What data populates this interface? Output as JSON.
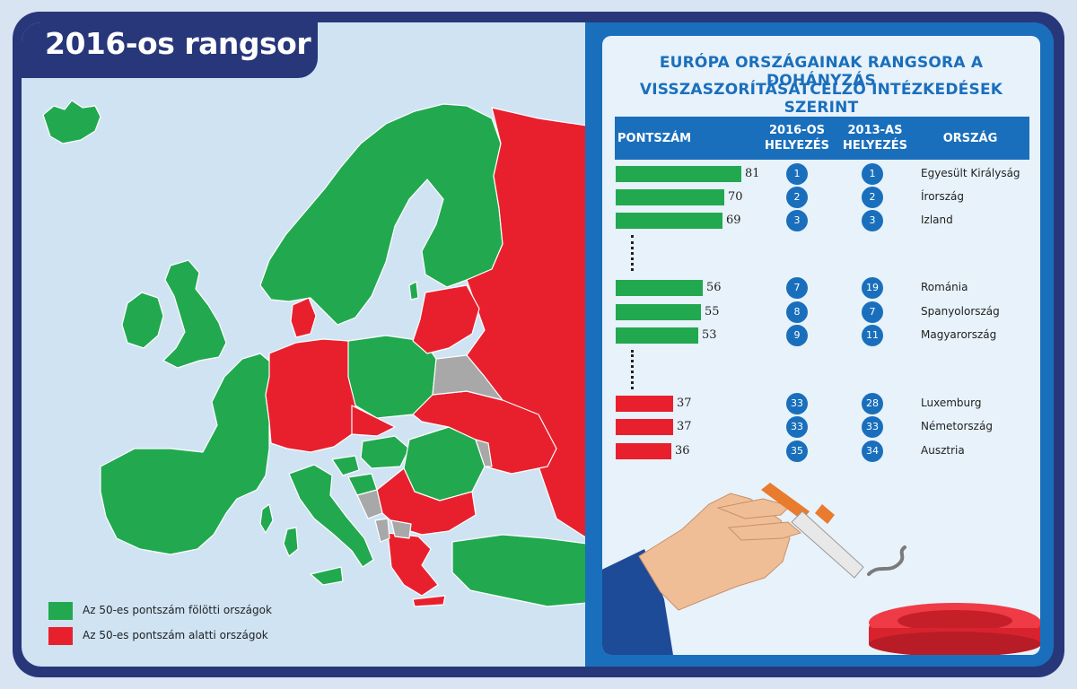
{
  "map": {
    "title": "2016-os rangsor",
    "legend": [
      {
        "label": "Az 50-es pontszám fölötti országok",
        "color": "#22a94f"
      },
      {
        "label": "Az 50-es pontszám alatti országok",
        "color": "#e8202e"
      }
    ],
    "colors": {
      "above": "#22a94f",
      "below": "#e8202e",
      "nodata": "#a8a8a8",
      "sea": "#cfe3f3"
    }
  },
  "panel": {
    "title_line1": "EURÓPA ORSZÁGAINAK RANGSORA A DOHÁNYZÁS",
    "title_line2": "VISSZASZORÍTÁSÁTCÉLZÓ INTÉZKEDÉSEK SZERINT"
  },
  "chart_data": {
    "type": "table",
    "title": "EURÓPA ORSZÁGAINAK RANGSORA A DOHÁNYZÁS VISSZASZORÍTÁSÁTCÉLZÓ INTÉZKEDÉSEK SZERINT",
    "columns": [
      "PONTSZÁM",
      "2016-OS HELYEZÉS",
      "2013-AS HELYEZÉS",
      "ORSZÁG"
    ],
    "rows": [
      {
        "score": 81,
        "rank2016": 1,
        "rank2013": 1,
        "country": "Egyesült Királyság",
        "color": "#22a94f"
      },
      {
        "score": 70,
        "rank2016": 2,
        "rank2013": 2,
        "country": "Írország",
        "color": "#22a94f"
      },
      {
        "score": 69,
        "rank2016": 3,
        "rank2013": 3,
        "country": "Izland",
        "color": "#22a94f"
      },
      {
        "score": 56,
        "rank2016": 7,
        "rank2013": 19,
        "country": "Románia",
        "color": "#22a94f"
      },
      {
        "score": 55,
        "rank2016": 8,
        "rank2013": 7,
        "country": "Spanyolország",
        "color": "#22a94f"
      },
      {
        "score": 53,
        "rank2016": 9,
        "rank2013": 11,
        "country": "Magyarország",
        "color": "#22a94f"
      },
      {
        "score": 37,
        "rank2016": 33,
        "rank2013": 28,
        "country": "Luxemburg",
        "color": "#e8202e"
      },
      {
        "score": 37,
        "rank2016": 33,
        "rank2013": 33,
        "country": "Németország",
        "color": "#e8202e"
      },
      {
        "score": 36,
        "rank2016": 35,
        "rank2013": 34,
        "country": "Ausztria",
        "color": "#e8202e"
      }
    ]
  }
}
